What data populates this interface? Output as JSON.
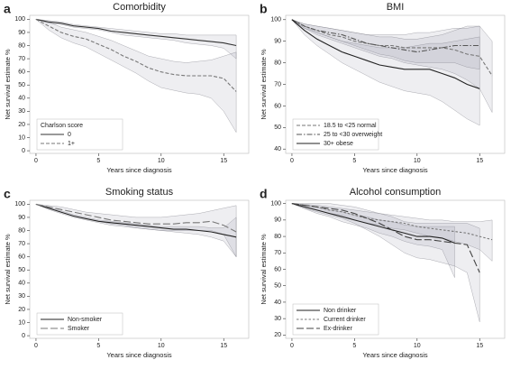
{
  "chart_data": [
    {
      "type": "line",
      "panel": "a",
      "title": "Comorbidity",
      "x_label": "Years since diagnosis",
      "y_label": "Net survival estimate %",
      "xlim": [
        -0.5,
        17
      ],
      "xticks": [
        0,
        5,
        10,
        15
      ],
      "ylim": [
        -2,
        103
      ],
      "yticks": [
        0,
        10,
        20,
        30,
        40,
        50,
        60,
        70,
        80,
        90,
        100
      ],
      "legend": "lower left",
      "legend_title": "Charlson score",
      "series": [
        {
          "name": "0",
          "color": "#333333",
          "dash": "solid",
          "x": [
            0,
            1,
            2,
            3,
            4,
            5,
            6,
            7,
            8,
            9,
            10,
            11,
            12,
            13,
            14,
            15,
            16
          ],
          "values": [
            100,
            98,
            97,
            95,
            94,
            93,
            91,
            90,
            89,
            88,
            87,
            86,
            85,
            84,
            83,
            82,
            80
          ],
          "lower": [
            100,
            97,
            96,
            94,
            93,
            92,
            90,
            88,
            87,
            86,
            85,
            84,
            82,
            81,
            80,
            78,
            70
          ],
          "upper": [
            100,
            99,
            98,
            96,
            95,
            94,
            93,
            92,
            91,
            90,
            89,
            89,
            88,
            88,
            88,
            88,
            88
          ]
        },
        {
          "name": "1+",
          "color": "#777777",
          "dash": "dashed",
          "x": [
            0,
            1,
            2,
            3,
            4,
            5,
            6,
            7,
            8,
            9,
            10,
            11,
            12,
            13,
            14,
            15,
            16
          ],
          "values": [
            100,
            95,
            90,
            87,
            85,
            81,
            77,
            72,
            68,
            63,
            60,
            58,
            57,
            57,
            57,
            55,
            45
          ],
          "lower": [
            100,
            92,
            86,
            82,
            79,
            74,
            69,
            64,
            59,
            53,
            48,
            46,
            44,
            43,
            40,
            30,
            14
          ],
          "upper": [
            100,
            98,
            94,
            92,
            90,
            87,
            84,
            80,
            76,
            72,
            70,
            68,
            67,
            68,
            69,
            72,
            75
          ]
        }
      ]
    },
    {
      "type": "line",
      "panel": "b",
      "title": "BMI",
      "x_label": "Years since diagnosis",
      "y_label": "Net survival estimate %",
      "xlim": [
        -0.5,
        17
      ],
      "xticks": [
        0,
        5,
        10,
        15
      ],
      "ylim": [
        38,
        102
      ],
      "yticks": [
        40,
        50,
        60,
        70,
        80,
        90,
        100
      ],
      "legend": "lower left",
      "series": [
        {
          "name": "18.5 to <25 normal",
          "color": "#777777",
          "dash": "dashed",
          "x": [
            0,
            1,
            2,
            3,
            4,
            5,
            6,
            7,
            8,
            9,
            10,
            11,
            12,
            13,
            14,
            15,
            16
          ],
          "values": [
            100,
            97,
            95,
            93,
            92,
            90,
            89,
            88,
            88,
            87,
            87,
            87,
            87,
            86,
            84,
            83,
            74
          ],
          "lower": [
            100,
            96,
            93,
            91,
            89,
            87,
            85,
            83,
            82,
            80,
            79,
            78,
            77,
            75,
            72,
            68,
            57
          ],
          "upper": [
            100,
            98,
            97,
            96,
            95,
            94,
            93,
            93,
            93,
            93,
            94,
            94,
            95,
            96,
            96,
            97,
            90
          ]
        },
        {
          "name": "25 to <30 overweight",
          "color": "#555555",
          "dash": "dashdot",
          "x": [
            0,
            1,
            2,
            3,
            4,
            5,
            6,
            7,
            8,
            9,
            10,
            11,
            12,
            13,
            14,
            15
          ],
          "values": [
            100,
            97,
            95,
            94,
            93,
            91,
            89,
            88,
            87,
            86,
            85,
            86,
            87,
            88,
            88,
            88
          ],
          "lower": [
            100,
            96,
            94,
            92,
            90,
            88,
            86,
            84,
            83,
            81,
            80,
            80,
            80,
            80,
            78,
            77
          ],
          "upper": [
            100,
            98,
            97,
            96,
            95,
            94,
            93,
            92,
            92,
            91,
            91,
            92,
            93,
            95,
            97,
            97
          ]
        },
        {
          "name": "30+ obese",
          "color": "#222222",
          "dash": "solid",
          "x": [
            0,
            1,
            2,
            3,
            4,
            5,
            6,
            7,
            8,
            9,
            10,
            11,
            12,
            13,
            14,
            15
          ],
          "values": [
            100,
            95,
            91,
            88,
            85,
            83,
            81,
            79,
            78,
            77,
            77,
            77,
            75,
            73,
            70,
            68
          ],
          "lower": [
            100,
            93,
            88,
            84,
            80,
            77,
            74,
            71,
            69,
            67,
            66,
            65,
            62,
            58,
            54,
            51
          ],
          "upper": [
            100,
            97,
            94,
            92,
            90,
            89,
            88,
            87,
            87,
            87,
            88,
            89,
            89,
            90,
            91,
            92
          ]
        }
      ]
    },
    {
      "type": "line",
      "panel": "c",
      "title": "Smoking status",
      "x_label": "Years since diagnosis",
      "y_label": "Net survival estimate %",
      "xlim": [
        -0.5,
        17
      ],
      "xticks": [
        0,
        5,
        10,
        15
      ],
      "ylim": [
        -2,
        103
      ],
      "yticks": [
        0,
        10,
        20,
        30,
        40,
        50,
        60,
        70,
        80,
        90,
        100
      ],
      "legend": "lower left",
      "series": [
        {
          "name": "Non-smoker",
          "color": "#222222",
          "dash": "solid",
          "x": [
            0,
            1,
            2,
            3,
            4,
            5,
            6,
            7,
            8,
            9,
            10,
            11,
            12,
            13,
            14,
            15,
            16
          ],
          "values": [
            100,
            97,
            94,
            91,
            89,
            87,
            86,
            85,
            84,
            83,
            82,
            81,
            81,
            80,
            79,
            77,
            75
          ],
          "lower": [
            100,
            96,
            93,
            90,
            88,
            86,
            84,
            83,
            82,
            81,
            80,
            79,
            78,
            77,
            75,
            72,
            60
          ],
          "upper": [
            100,
            98,
            95,
            92,
            90,
            88,
            87,
            86,
            85,
            84,
            83,
            83,
            83,
            83,
            82,
            82,
            90
          ]
        },
        {
          "name": "Smoker",
          "color": "#777777",
          "dash": "longdash",
          "x": [
            0,
            1,
            2,
            3,
            4,
            5,
            6,
            7,
            8,
            9,
            10,
            11,
            12,
            13,
            14,
            15,
            16
          ],
          "values": [
            100,
            98,
            96,
            94,
            92,
            90,
            88,
            87,
            86,
            85,
            85,
            85,
            86,
            86,
            87,
            84,
            79
          ],
          "lower": [
            100,
            97,
            94,
            91,
            89,
            87,
            85,
            84,
            82,
            81,
            80,
            80,
            80,
            80,
            80,
            77,
            60
          ],
          "upper": [
            100,
            99,
            98,
            96,
            94,
            93,
            92,
            91,
            90,
            90,
            90,
            91,
            92,
            93,
            95,
            97,
            99
          ]
        }
      ]
    },
    {
      "type": "line",
      "panel": "d",
      "title": "Alcohol consumption",
      "x_label": "Years since diagnosis",
      "y_label": "Net survival estimate %",
      "xlim": [
        -0.5,
        17
      ],
      "xticks": [
        0,
        5,
        10,
        15
      ],
      "ylim": [
        18,
        102
      ],
      "yticks": [
        20,
        30,
        40,
        50,
        60,
        70,
        80,
        90,
        100
      ],
      "legend": "lower left",
      "series": [
        {
          "name": "Non drinker",
          "color": "#222222",
          "dash": "solid",
          "x": [
            0,
            1,
            2,
            3,
            4,
            5,
            6,
            7,
            8,
            9,
            10,
            11,
            12,
            13
          ],
          "values": [
            100,
            98,
            96,
            94,
            92,
            90,
            88,
            86,
            84,
            82,
            80,
            80,
            79,
            76
          ],
          "lower": [
            100,
            97,
            94,
            92,
            89,
            87,
            85,
            82,
            80,
            77,
            75,
            74,
            72,
            55
          ],
          "upper": [
            100,
            99,
            98,
            96,
            95,
            93,
            92,
            90,
            89,
            87,
            86,
            86,
            86,
            86
          ]
        },
        {
          "name": "Current drinker",
          "color": "#777777",
          "dash": "shortdash",
          "x": [
            0,
            1,
            2,
            3,
            4,
            5,
            6,
            7,
            8,
            9,
            10,
            11,
            12,
            13,
            14,
            15,
            16
          ],
          "values": [
            100,
            99,
            98,
            96,
            95,
            93,
            91,
            90,
            89,
            88,
            86,
            85,
            84,
            83,
            82,
            80,
            78
          ],
          "lower": [
            100,
            98,
            96,
            94,
            93,
            90,
            88,
            87,
            85,
            84,
            82,
            80,
            79,
            77,
            75,
            72,
            65
          ],
          "upper": [
            100,
            99.5,
            99,
            98,
            97,
            96,
            95,
            94,
            93,
            92,
            91,
            90,
            90,
            89,
            89,
            89,
            90
          ]
        },
        {
          "name": "Ex-drinker",
          "color": "#444444",
          "dash": "longdash",
          "x": [
            0,
            1,
            2,
            3,
            4,
            5,
            6,
            7,
            8,
            9,
            10,
            11,
            12,
            13,
            14,
            15
          ],
          "values": [
            100,
            99,
            98,
            97,
            96,
            94,
            91,
            88,
            84,
            80,
            78,
            78,
            77,
            76,
            75,
            58
          ],
          "lower": [
            100,
            97,
            95,
            93,
            91,
            88,
            84,
            80,
            75,
            70,
            67,
            66,
            64,
            62,
            58,
            28
          ],
          "upper": [
            100,
            100,
            100,
            100,
            99,
            98,
            96,
            94,
            92,
            89,
            88,
            88,
            88,
            88,
            88,
            85
          ]
        }
      ]
    }
  ]
}
